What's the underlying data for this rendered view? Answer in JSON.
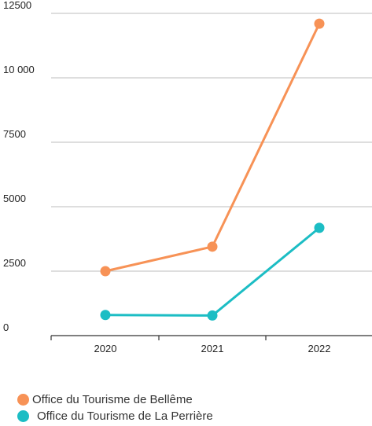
{
  "chart_data": {
    "type": "line",
    "categories": [
      "2020",
      "2021",
      "2022"
    ],
    "series": [
      {
        "name": "Office du Tourisme de Bellême",
        "values": [
          2500,
          3450,
          12100
        ],
        "color": "#F79256"
      },
      {
        "name": "Office du Tourisme de La Perrière",
        "values": [
          800,
          780,
          4180
        ],
        "color": "#1CBDC4"
      }
    ],
    "y_ticks": [
      0,
      2500,
      5000,
      7500,
      10000,
      12500
    ],
    "y_tick_labels": [
      "0",
      "2500",
      "5000",
      "7500",
      "10 000",
      "12500"
    ],
    "ylim": [
      0,
      12500
    ],
    "grid": true,
    "legend_position": "bottom-left"
  }
}
